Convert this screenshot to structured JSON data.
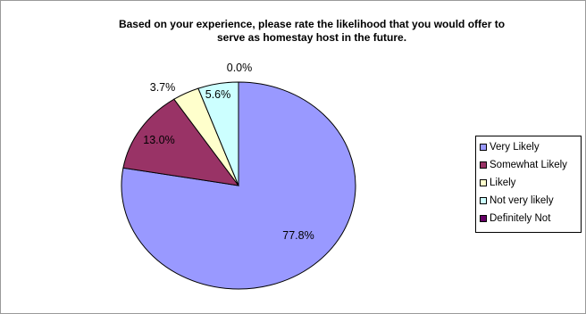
{
  "chart_data": {
    "type": "pie",
    "title": "Based on your experience, please rate the likelihood that you would offer to\nserve as homestay host in the future.",
    "slices": [
      {
        "label": "Very Likely",
        "value": 77.8,
        "display": "77.8%",
        "color": "#9999ff"
      },
      {
        "label": "Somewhat Likely",
        "value": 13.0,
        "display": "13.0%",
        "color": "#993366"
      },
      {
        "label": "Likely",
        "value": 3.7,
        "display": "3.7%",
        "color": "#ffffcc"
      },
      {
        "label": "Not very likely",
        "value": 5.6,
        "display": "5.6%",
        "color": "#ccffff"
      },
      {
        "label": "Definitely Not",
        "value": 0.0,
        "display": "0.0%",
        "color": "#660066"
      }
    ],
    "legend_position": "right"
  }
}
